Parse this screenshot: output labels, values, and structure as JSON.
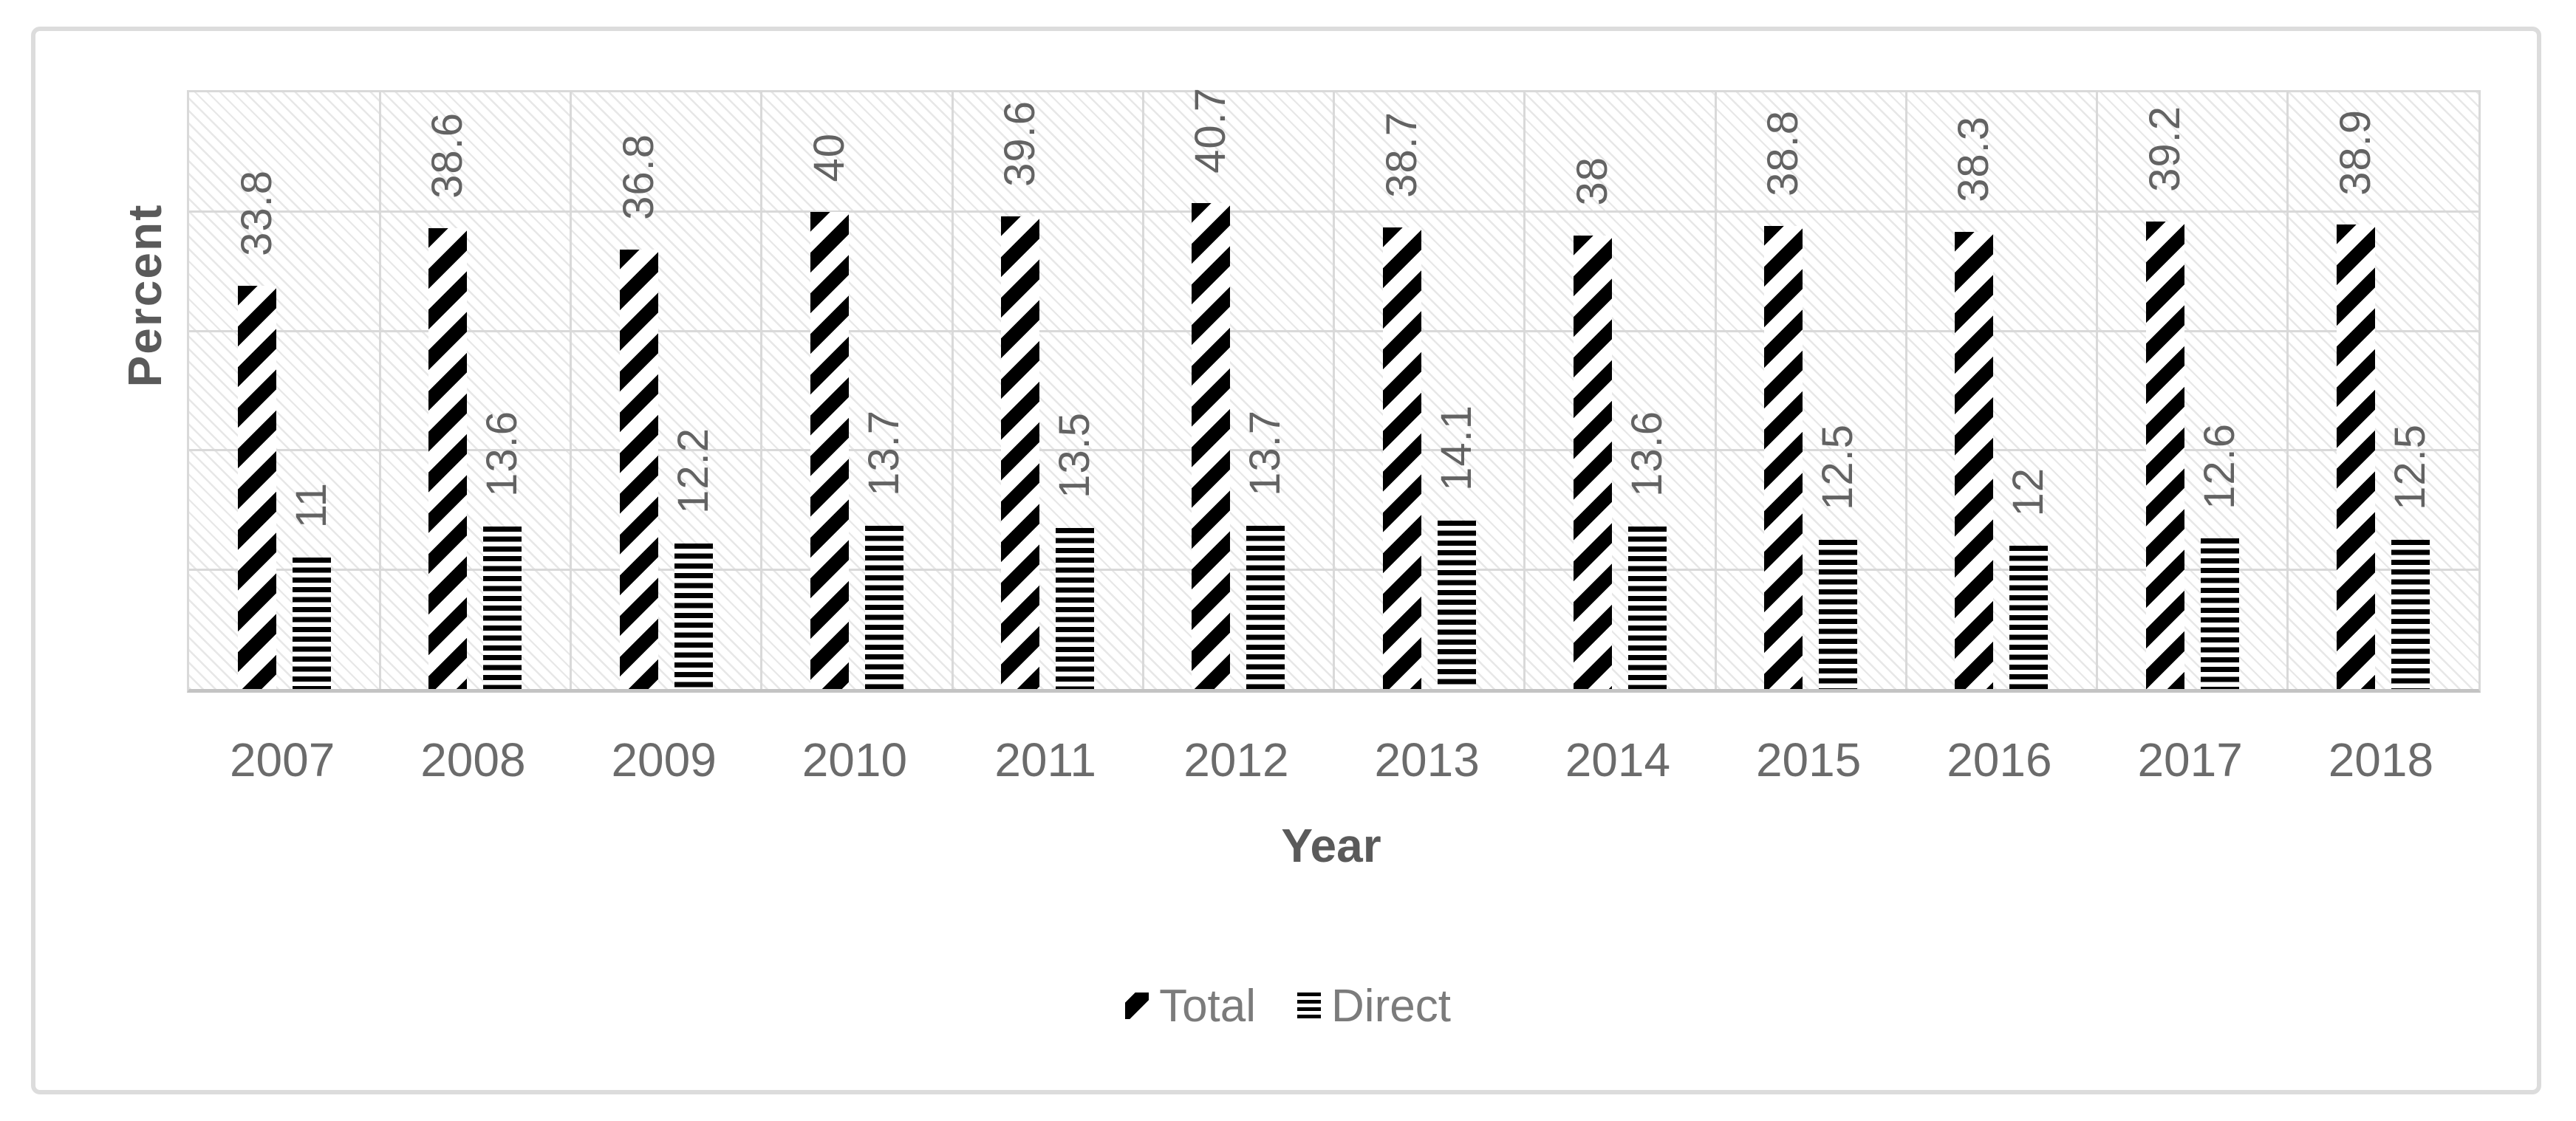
{
  "chart_data": {
    "type": "bar",
    "title": "",
    "xlabel": "Year",
    "ylabel": "Percent",
    "categories": [
      "2007",
      "2008",
      "2009",
      "2010",
      "2011",
      "2012",
      "2013",
      "2014",
      "2015",
      "2016",
      "2017",
      "2018"
    ],
    "series": [
      {
        "name": "Total",
        "pattern": "diagonal-stripes",
        "values": [
          33.8,
          38.6,
          36.8,
          40,
          39.6,
          40.7,
          38.7,
          38,
          38.8,
          38.3,
          39.2,
          38.9
        ]
      },
      {
        "name": "Direct",
        "pattern": "horizontal-stripes",
        "values": [
          11,
          13.6,
          12.2,
          13.7,
          13.5,
          13.7,
          14.1,
          13.6,
          12.5,
          12,
          12.6,
          12.5
        ]
      }
    ],
    "data_labels": "rotated 90 degrees, outside end of each bar",
    "ylim": [
      0,
      50
    ],
    "gridline_step": 10,
    "grid": true,
    "y_tick_labels_shown": false,
    "legend_position": "bottom-center",
    "plot_background": "light diagonal hatch",
    "colors": {
      "bar_fill": "#000000",
      "data_label_text": "#636363",
      "tick_label_text": "#6b6b6b",
      "axis_title_text": "#5a5a5a",
      "legend_text": "#7b7b7b",
      "gridline": "#d9d9d9",
      "axis_line": "#c3c3c3",
      "frame_border": "#dcdcdc",
      "plot_hatch": "#e7e7e7"
    }
  }
}
